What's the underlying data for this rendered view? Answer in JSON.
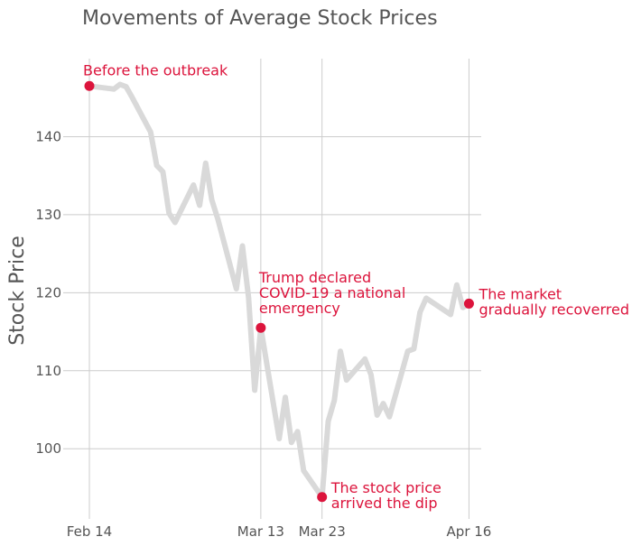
{
  "chart_data": {
    "type": "line",
    "title": "Movements of Average Stock Prices",
    "xlabel": "",
    "ylabel": "Stock Price",
    "ylim": [
      91,
      150
    ],
    "x_range_days": [
      0,
      64
    ],
    "y_ticks": [
      100,
      110,
      120,
      130,
      140
    ],
    "x_ticks": [
      {
        "label": "Feb 14",
        "day": 0
      },
      {
        "label": "Mar 13",
        "day": 28
      },
      {
        "label": "Mar 23",
        "day": 38
      },
      {
        "label": "Apr 16",
        "day": 62
      }
    ],
    "grid": true,
    "colors": {
      "line": "#d9d9d9",
      "highlight": "#dc143c",
      "grid": "#cccccc",
      "text": "#555555"
    },
    "series": [
      {
        "x": [
          "Feb 14",
          "Feb 18",
          "Feb 19",
          "Feb 20",
          "Feb 21",
          "Feb 24",
          "Feb 25",
          "Feb 26",
          "Feb 27",
          "Feb 28",
          "Mar 2",
          "Mar 3",
          "Mar 4",
          "Mar 5",
          "Mar 6",
          "Mar 9",
          "Mar 10",
          "Mar 11",
          "Mar 12",
          "Mar 13",
          "Mar 16",
          "Mar 17",
          "Mar 18",
          "Mar 19",
          "Mar 20",
          "Mar 23",
          "Mar 24",
          "Mar 25",
          "Mar 26",
          "Mar 27",
          "Mar 30",
          "Mar 31",
          "Apr 1",
          "Apr 2",
          "Apr 3",
          "Apr 6",
          "Apr 7",
          "Apr 8",
          "Apr 9",
          "Apr 13",
          "Apr 14",
          "Apr 15",
          "Apr 16"
        ],
        "values": [
          146.5,
          146.1,
          146.7,
          146.4,
          145.0,
          140.6,
          136.3,
          135.5,
          130.2,
          129.0,
          133.8,
          131.2,
          136.6,
          131.9,
          129.4,
          120.5,
          126.0,
          119.4,
          107.5,
          115.5,
          101.3,
          106.6,
          100.8,
          102.2,
          97.2,
          93.8,
          103.5,
          106.2,
          112.5,
          108.8,
          111.5,
          109.5,
          104.3,
          105.8,
          104.1,
          112.5,
          112.8,
          117.5,
          119.3,
          117.2,
          121.0,
          118.1,
          118.6
        ]
      }
    ],
    "annotations": [
      {
        "label": "Before the outbreak",
        "lines": [
          "Before the outbreak"
        ],
        "x": "Feb 14",
        "y": 146.5
      },
      {
        "label": "Trump declared COVID-19 a national emergency",
        "lines": [
          "Trump declared",
          "COVID-19 a national",
          "emergency"
        ],
        "x": "Mar 13",
        "y": 115.5
      },
      {
        "label": "The stock price arrived the dip",
        "lines": [
          "The stock price",
          "arrived the dip"
        ],
        "x": "Mar 23",
        "y": 93.8
      },
      {
        "label": "The market gradually recoverred",
        "lines": [
          "The market",
          "gradually recoverred"
        ],
        "x": "Apr 16",
        "y": 118.6
      }
    ]
  }
}
